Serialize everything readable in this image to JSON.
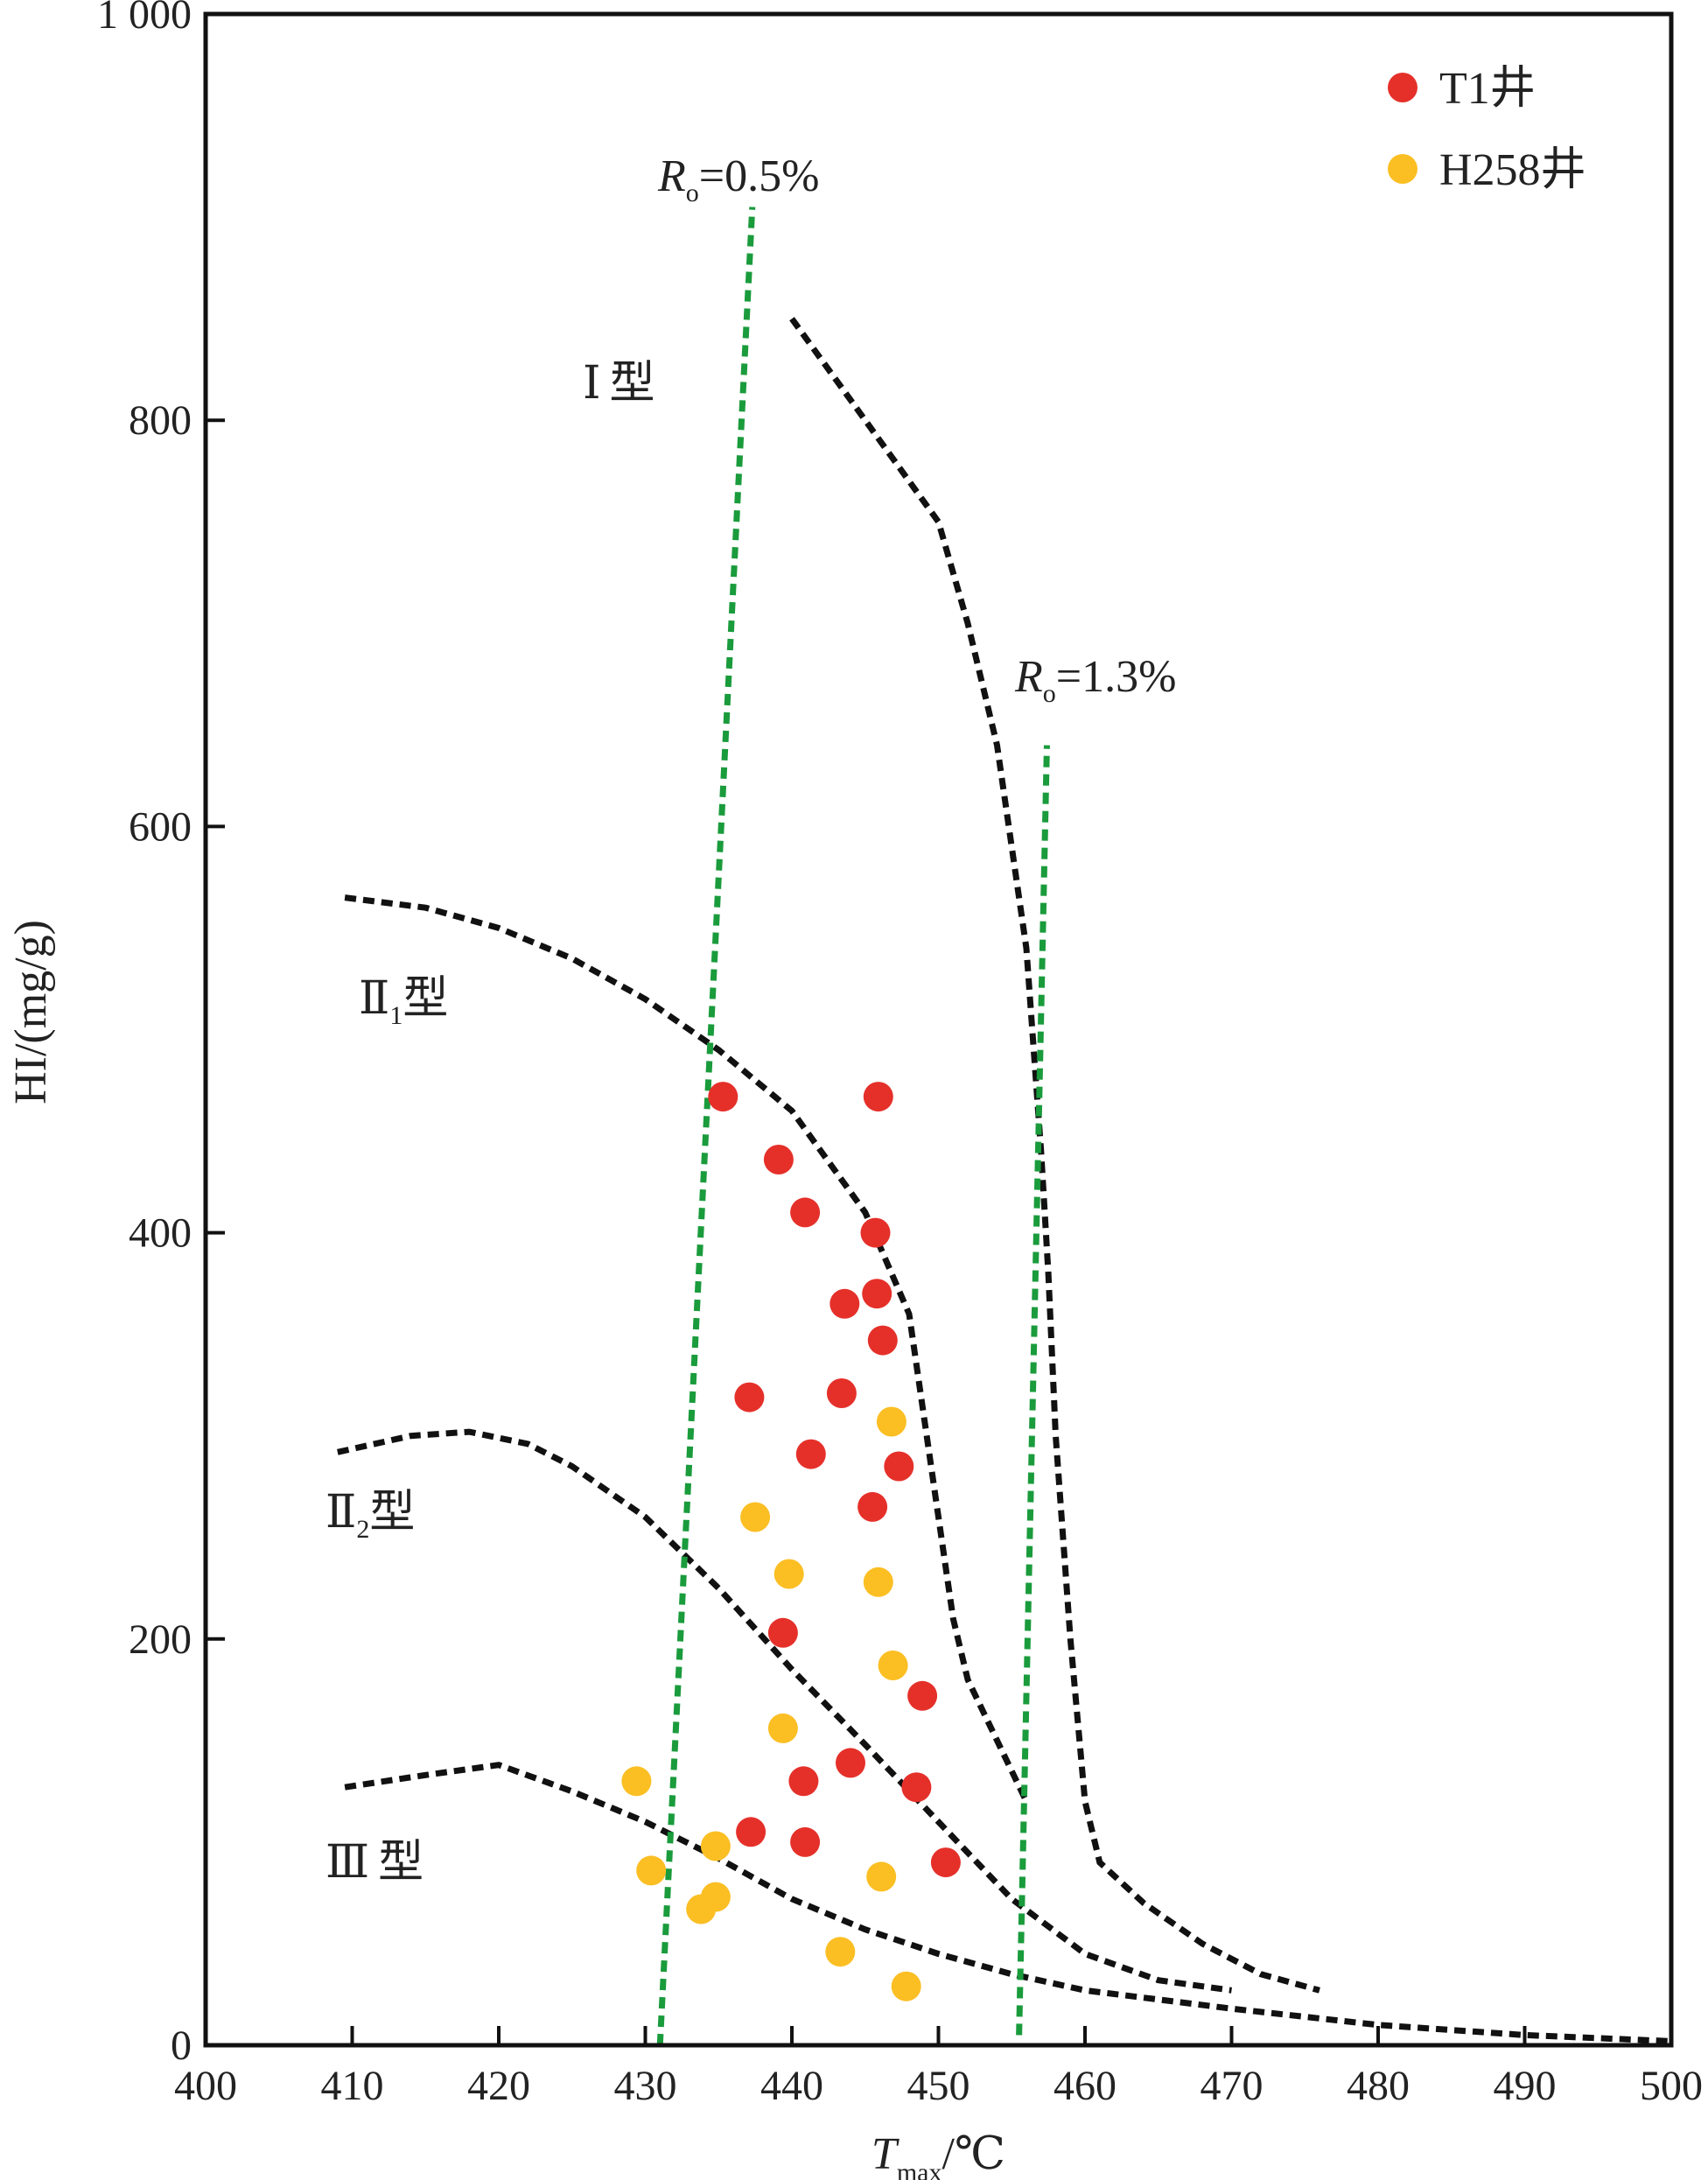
{
  "chart_data": {
    "type": "scatter",
    "xlabel": {
      "main": "T",
      "sub": "max",
      "unit": "/℃"
    },
    "ylabel": "HI/(mg/g)",
    "xlim": [
      400,
      500
    ],
    "ylim": [
      0,
      1000
    ],
    "x_ticks": [
      400,
      410,
      420,
      430,
      440,
      450,
      460,
      470,
      480,
      490,
      500
    ],
    "y_ticks": [
      0,
      200,
      400,
      600,
      800,
      1000
    ],
    "y_tick_labels": [
      "0",
      "200",
      "400",
      "600",
      "800",
      "1 000"
    ],
    "grid": false,
    "legend_position": "top-right",
    "colors": {
      "t1": "#e5302a",
      "h258": "#fbbf24",
      "ro": "#1a9b3c",
      "type": "#111111"
    },
    "series": [
      {
        "name": "T1井",
        "color": "#e5302a",
        "points": [
          [
            435.3,
            467
          ],
          [
            445.9,
            467
          ],
          [
            439.1,
            436
          ],
          [
            440.9,
            410
          ],
          [
            445.7,
            400
          ],
          [
            443.6,
            365
          ],
          [
            445.8,
            370
          ],
          [
            446.2,
            347
          ],
          [
            437.1,
            319
          ],
          [
            443.4,
            321
          ],
          [
            441.3,
            291
          ],
          [
            447.3,
            285
          ],
          [
            445.5,
            265
          ],
          [
            439.4,
            203
          ],
          [
            448.9,
            172
          ],
          [
            444.0,
            139
          ],
          [
            440.8,
            130
          ],
          [
            448.5,
            127
          ],
          [
            437.2,
            105
          ],
          [
            440.9,
            100
          ],
          [
            450.5,
            90
          ]
        ]
      },
      {
        "name": "H258井",
        "color": "#fbbf24",
        "points": [
          [
            446.8,
            307
          ],
          [
            437.5,
            260
          ],
          [
            439.8,
            232
          ],
          [
            445.9,
            228
          ],
          [
            446.9,
            187
          ],
          [
            439.4,
            156
          ],
          [
            429.4,
            130
          ],
          [
            430.4,
            86
          ],
          [
            434.8,
            98
          ],
          [
            434.8,
            73
          ],
          [
            433.8,
            67
          ],
          [
            446.1,
            83
          ],
          [
            443.3,
            46
          ],
          [
            447.8,
            29
          ]
        ]
      }
    ],
    "ro_lines": [
      {
        "label_main": "R",
        "label_sub": "o",
        "label_value": "=0.5%",
        "points": [
          [
            431.0,
            0
          ],
          [
            437.3,
            905
          ]
        ]
      },
      {
        "label_main": "R",
        "label_sub": "o",
        "label_value": "=1.3%",
        "points": [
          [
            455.5,
            5
          ],
          [
            457.4,
            640
          ]
        ]
      }
    ],
    "type_curves": [
      {
        "label_main": "Ⅰ",
        "label_sub": "",
        "label_suffix": "型",
        "points": [
          [
            440,
            850
          ],
          [
            443,
            820
          ],
          [
            447,
            780
          ],
          [
            450,
            750
          ],
          [
            452,
            700
          ],
          [
            454,
            640
          ],
          [
            456,
            540
          ],
          [
            457,
            440
          ],
          [
            457.5,
            380
          ],
          [
            458,
            300
          ],
          [
            459,
            200
          ],
          [
            460,
            120
          ],
          [
            461,
            90
          ],
          [
            464,
            70
          ],
          [
            468,
            50
          ],
          [
            472,
            35
          ],
          [
            476,
            27
          ]
        ]
      },
      {
        "label_main": "Ⅱ",
        "label_sub": "1",
        "label_suffix": "型",
        "points": [
          [
            409.5,
            565
          ],
          [
            415,
            560
          ],
          [
            420,
            550
          ],
          [
            425,
            535
          ],
          [
            430,
            515
          ],
          [
            435,
            490
          ],
          [
            440,
            460
          ],
          [
            443,
            430
          ],
          [
            445,
            410
          ],
          [
            448,
            360
          ],
          [
            450,
            260
          ],
          [
            451,
            210
          ],
          [
            452,
            180
          ],
          [
            454,
            150
          ],
          [
            456,
            120
          ]
        ]
      },
      {
        "label_main": "Ⅱ",
        "label_sub": "2",
        "label_suffix": "型",
        "points": [
          [
            409,
            292
          ],
          [
            414,
            300
          ],
          [
            418,
            302
          ],
          [
            422,
            296
          ],
          [
            425,
            285
          ],
          [
            430,
            260
          ],
          [
            435,
            225
          ],
          [
            440,
            185
          ],
          [
            445,
            148
          ],
          [
            450,
            110
          ],
          [
            455,
            72
          ],
          [
            460,
            45
          ],
          [
            465,
            32
          ],
          [
            470,
            27
          ]
        ]
      },
      {
        "label_main": "Ⅲ",
        "label_sub": "",
        "label_suffix": "型",
        "points": [
          [
            409.5,
            127
          ],
          [
            415,
            133
          ],
          [
            420,
            138
          ],
          [
            425,
            125
          ],
          [
            430,
            110
          ],
          [
            435,
            92
          ],
          [
            440,
            72
          ],
          [
            445,
            57
          ],
          [
            450,
            45
          ],
          [
            455,
            35
          ],
          [
            460,
            27
          ],
          [
            470,
            18
          ],
          [
            480,
            10
          ],
          [
            490,
            5
          ],
          [
            500,
            2
          ]
        ]
      }
    ]
  }
}
